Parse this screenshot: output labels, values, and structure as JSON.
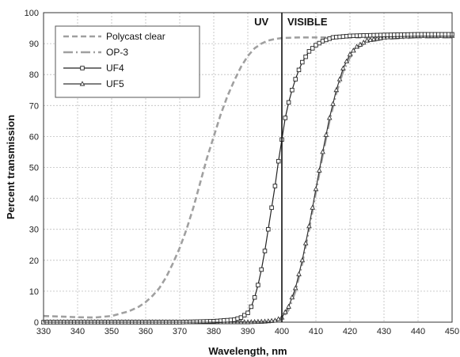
{
  "chart_data": {
    "type": "line",
    "xlabel": "Wavelength, nm",
    "ylabel": "Percent  transmission",
    "xlim": [
      330,
      450
    ],
    "ylim": [
      0,
      100
    ],
    "xticks": [
      330,
      340,
      350,
      360,
      370,
      380,
      390,
      400,
      410,
      420,
      430,
      440,
      450
    ],
    "yticks": [
      0,
      10,
      20,
      30,
      40,
      50,
      60,
      70,
      80,
      90,
      100
    ],
    "grid": true,
    "legend": "top-left",
    "annotations": [
      {
        "text": "UV",
        "x": 394
      },
      {
        "text": "VISIBLE",
        "x": 407.5
      }
    ],
    "divider_x": 400,
    "series": [
      {
        "name": "Polycast clear",
        "style": "dashed",
        "color": "#a0a0a0",
        "x": [
          330,
          335,
          340,
          345,
          350,
          355,
          358,
          360,
          362,
          364,
          366,
          368,
          370,
          372,
          374,
          376,
          378,
          380,
          382,
          384,
          386,
          388,
          390,
          392,
          394,
          396,
          398,
          400,
          405,
          410,
          420,
          430,
          440,
          450
        ],
        "y": [
          2,
          1.8,
          1.6,
          1.5,
          2,
          3.5,
          5,
          6.5,
          8.5,
          11,
          14.5,
          19,
          24,
          30,
          37,
          45,
          53,
          60,
          67,
          73,
          78,
          82.5,
          86,
          88.5,
          90,
          91,
          91.5,
          91.8,
          92,
          92,
          92,
          92,
          92,
          92
        ]
      },
      {
        "name": "OP-3",
        "style": "dashdot",
        "color": "#a0a0a0",
        "x": [
          330,
          340,
          350,
          360,
          370,
          380,
          390,
          395,
          398,
          400,
          402,
          404,
          406,
          408,
          410,
          412,
          414,
          416,
          418,
          420,
          422,
          425,
          430,
          440,
          450
        ],
        "y": [
          0,
          0,
          0,
          0,
          0,
          0,
          0,
          0,
          0.3,
          1,
          4,
          10,
          19,
          30,
          42,
          54,
          65,
          74,
          81,
          85.5,
          88.5,
          90.5,
          91.5,
          92,
          92
        ]
      },
      {
        "name": "UF4",
        "style": "solid",
        "marker": "square",
        "color": "#222222",
        "x": [
          330,
          340,
          350,
          360,
          370,
          380,
          386,
          388,
          390,
          391,
          392,
          393,
          394,
          395,
          396,
          397,
          398,
          399,
          400,
          401,
          402,
          403,
          404,
          405,
          406,
          408,
          410,
          412,
          415,
          420,
          430,
          440,
          450
        ],
        "y": [
          0,
          0,
          0,
          0,
          0,
          0.3,
          0.8,
          1.5,
          3,
          5,
          8,
          12,
          17,
          23,
          30,
          37,
          44,
          52,
          59,
          66,
          71,
          75,
          78.5,
          81.5,
          84,
          87.5,
          89.5,
          90.8,
          92,
          92.5,
          92.8,
          93,
          93
        ]
      },
      {
        "name": "UF5",
        "style": "solid",
        "marker": "triangle",
        "color": "#333333",
        "x": [
          330,
          340,
          350,
          360,
          370,
          380,
          390,
          395,
          398,
          400,
          402,
          404,
          406,
          408,
          410,
          412,
          414,
          416,
          418,
          420,
          422,
          425,
          430,
          440,
          450
        ],
        "y": [
          0,
          0,
          0,
          0,
          0,
          0,
          0,
          0.2,
          0.5,
          1.5,
          5,
          11,
          20,
          31,
          43,
          55,
          66,
          75,
          82,
          86.5,
          89,
          91,
          92,
          92.5,
          92.5
        ]
      }
    ]
  }
}
